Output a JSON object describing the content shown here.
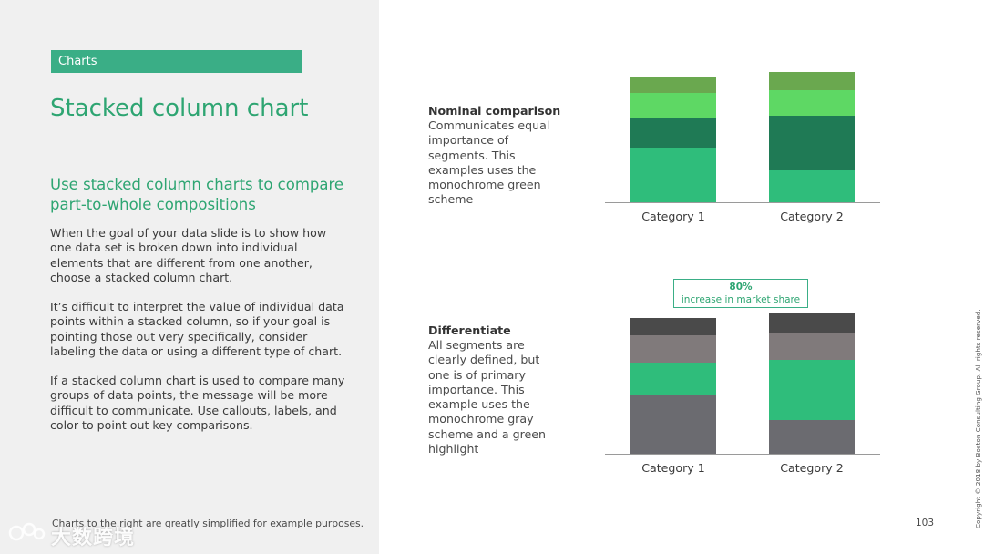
{
  "section_tag": "Charts",
  "title": "Stacked column chart",
  "subheading": "Use stacked column charts to compare part-to-whole compositions",
  "paragraphs": [
    "When the goal of your data slide is to show how one data set is broken down into individual elements that are different from one another, choose a stacked column chart.",
    "It’s difficult to interpret the value of individual data points within a stacked column, so if your goal is pointing those out very specifically, consider labeling the data or using a different type of chart.",
    "If a stacked column chart is used to compare many groups of data points, the message will be more difficult to communicate. Use callouts, labels, and color to point out key comparisons."
  ],
  "footnote": "Charts to the right are greatly simplified for example purposes.",
  "watermark": "大数跨境",
  "examples": [
    {
      "title": "Nominal comparison",
      "description": "Communicates equal importance of segments. This examples uses the monochrome green scheme"
    },
    {
      "title": "Differentiate",
      "description": "All segments are clearly defined, but one is of primary importance. This example uses the monochrome gray scheme and a green highlight",
      "callout": {
        "value": "80%",
        "text": "increase in market share"
      }
    }
  ],
  "page_number": "103",
  "copyright": "Copyright © 2018 by Boston Consulting Group. All rights reserved.",
  "chart_data": [
    {
      "type": "bar",
      "stacked": true,
      "categories": [
        "Category 1",
        "Category 2"
      ],
      "series": [
        {
          "values": [
            60,
            35
          ],
          "color": "#2fbd7b"
        },
        {
          "values": [
            32,
            60
          ],
          "color": "#1f7a55"
        },
        {
          "values": [
            28,
            28
          ],
          "color": "#5ed864"
        },
        {
          "values": [
            18,
            20
          ],
          "color": "#6aa84f"
        }
      ],
      "ylim": [
        0,
        143
      ],
      "grid": false
    },
    {
      "type": "bar",
      "stacked": true,
      "categories": [
        "Category 1",
        "Category 2"
      ],
      "series": [
        {
          "values": [
            64,
            37
          ],
          "color": "#6b6b70"
        },
        {
          "values": [
            36,
            66
          ],
          "color": "#2fbd7b"
        },
        {
          "values": [
            30,
            30
          ],
          "color": "#807a7b"
        },
        {
          "values": [
            19,
            22
          ],
          "color": "#4a4a4a"
        }
      ],
      "ylim": [
        0,
        155
      ],
      "grid": false
    }
  ]
}
